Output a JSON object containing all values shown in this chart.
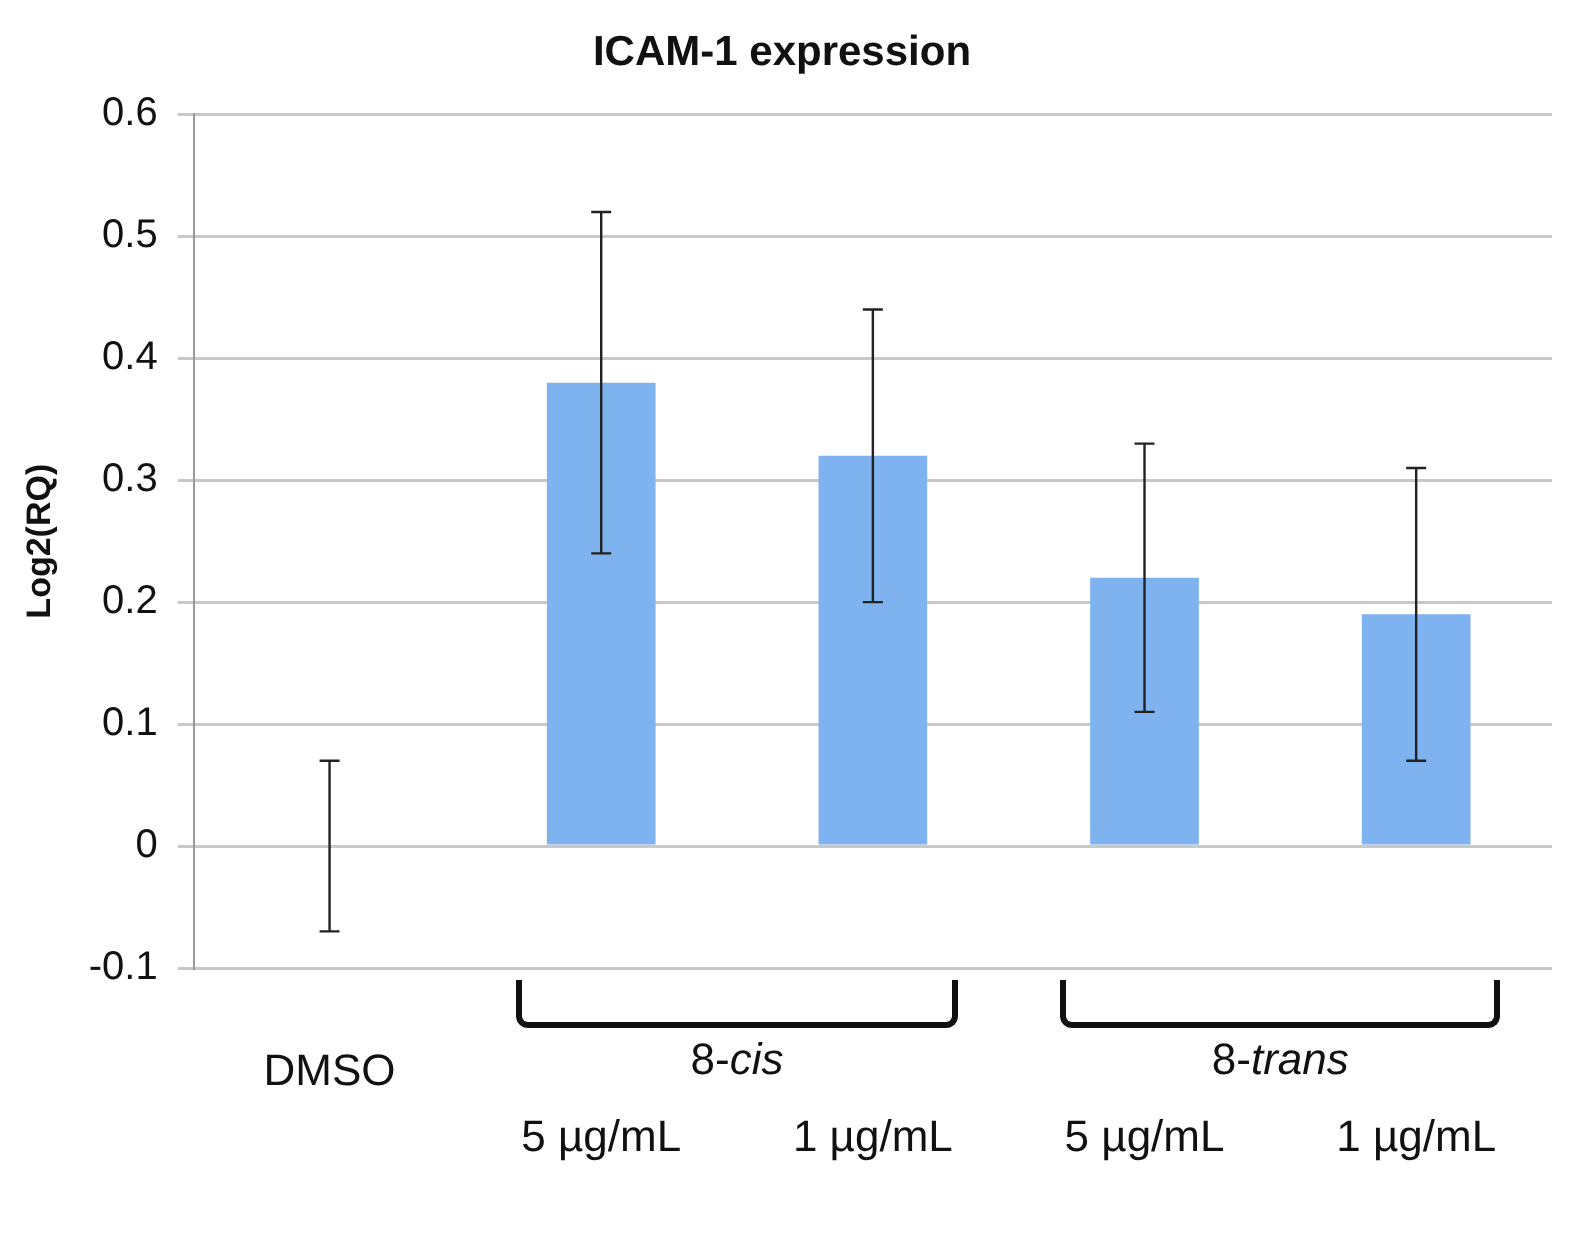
{
  "chart_data": {
    "type": "bar",
    "title": "ICAM-1 expression",
    "ylabel": "Log2(RQ)",
    "categories": [
      "DMSO",
      "5 µg/mL",
      "1 µg/mL",
      "5 µg/mL",
      "1 µg/mL"
    ],
    "values": [
      0,
      0.38,
      0.32,
      0.22,
      0.19
    ],
    "errors": [
      0.07,
      0.14,
      0.12,
      0.11,
      0.12
    ],
    "color": "#7eb3ef",
    "ylim": [
      -0.1,
      0.6
    ],
    "yticks": [
      -0.1,
      0,
      0.1,
      0.2,
      0.3,
      0.4,
      0.5,
      0.6
    ],
    "grid": "y",
    "annotations": [
      "8-cis",
      "8-trans"
    ]
  }
}
